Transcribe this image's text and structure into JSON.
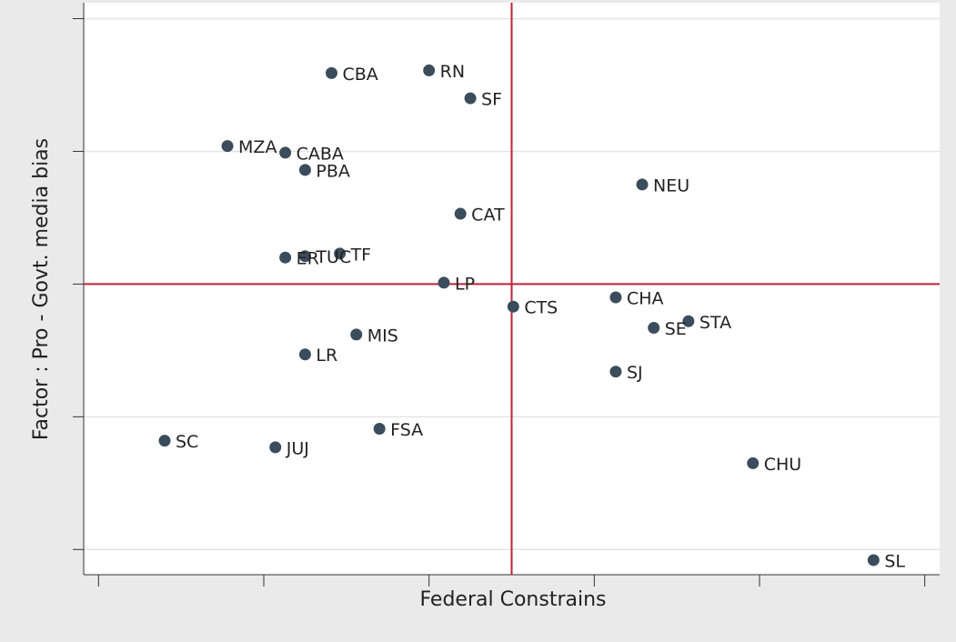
{
  "chart_data": {
    "type": "scatter",
    "xlabel": "Federal Constrains",
    "ylabel": "Factor : Pro - Govt. media bias",
    "labels": [
      "CBA",
      "RN",
      "SF",
      "MZA",
      "CABA",
      "PBA",
      "NEU",
      "CAT",
      "TF",
      "TUC",
      "ER",
      "LP",
      "CTS",
      "CHA",
      "STA",
      "SE",
      "MIS",
      "LR",
      "SJ",
      "FSA",
      "SC",
      "JUJ",
      "CHU",
      "SL"
    ],
    "x": [
      -0.59,
      0.0,
      0.25,
      -1.22,
      -0.87,
      -0.75,
      1.29,
      0.19,
      -0.54,
      -0.75,
      -0.87,
      0.09,
      0.51,
      1.13,
      1.57,
      1.36,
      -0.44,
      -0.75,
      1.13,
      -0.3,
      -1.6,
      -0.93,
      1.96,
      2.69
    ],
    "y": [
      1.59,
      1.61,
      1.4,
      1.04,
      0.99,
      0.86,
      0.75,
      0.53,
      0.23,
      0.21,
      0.2,
      0.01,
      -0.17,
      -0.1,
      -0.28,
      -0.33,
      -0.38,
      -0.53,
      -0.66,
      -1.09,
      -1.18,
      -1.23,
      -1.35,
      -2.08
    ],
    "xlim": [
      -2.09,
      3.09
    ],
    "ylim": [
      -2.19,
      2.12
    ],
    "xticks": [
      -2,
      -1,
      0,
      1,
      2,
      3
    ],
    "yticks": [
      -2,
      -1,
      0,
      1,
      2
    ],
    "xline": 0.5,
    "yline": 0,
    "grid": true,
    "color": "#3b4d5c",
    "line_color": "#c1203b"
  }
}
